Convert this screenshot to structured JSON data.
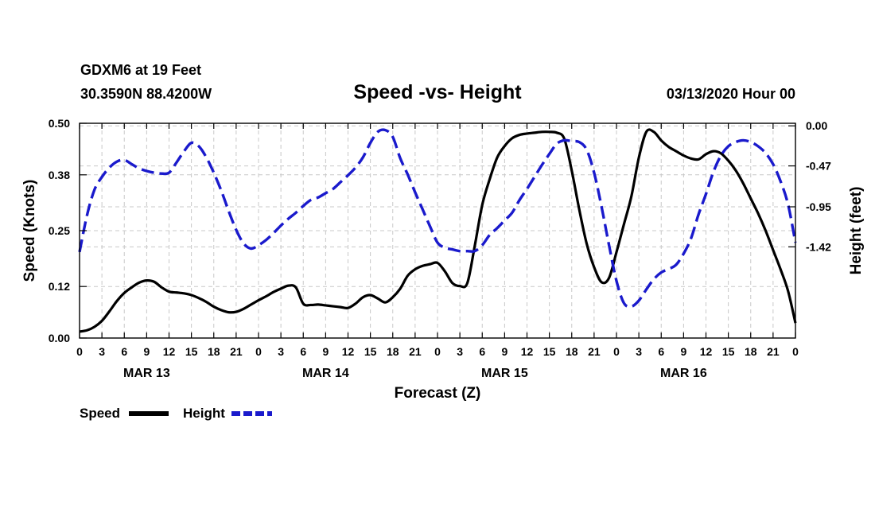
{
  "header": {
    "station": "GDXM6 at 19 Feet",
    "location": "30.3590N 88.4200W",
    "title": "Speed -vs- Height",
    "datetime": "03/13/2020 Hour 00"
  },
  "chart_data": {
    "type": "line",
    "title": "Speed -vs- Height",
    "xlabel": "Forecast (Z)",
    "ylabel": "Speed (Knots)",
    "y2label": "Height (feet)",
    "xlim": [
      0,
      96
    ],
    "ylim": [
      0.0,
      0.5
    ],
    "y2lim": [
      -2.49,
      0.03
    ],
    "grid": true,
    "legend_position": "bottom-left",
    "y_ticks": [
      0.0,
      0.12,
      0.25,
      0.38,
      0.5
    ],
    "y_tick_labels": [
      "0.00",
      "0.12",
      "0.25",
      "0.38",
      "0.50"
    ],
    "y2_ticks": [
      0.0,
      -0.47,
      -0.95,
      -1.42
    ],
    "y2_tick_labels": [
      "0.00",
      "-0.47",
      "-0.95",
      "-1.42"
    ],
    "x_ticks": [
      0,
      3,
      6,
      9,
      12,
      15,
      18,
      21,
      24,
      27,
      30,
      33,
      36,
      39,
      42,
      45,
      48,
      51,
      54,
      57,
      60,
      63,
      66,
      69,
      72,
      75,
      78,
      81,
      84,
      87,
      90,
      93,
      96
    ],
    "x_tick_labels": [
      "0",
      "3",
      "6",
      "9",
      "12",
      "15",
      "18",
      "21",
      "0",
      "3",
      "6",
      "9",
      "12",
      "15",
      "18",
      "21",
      "0",
      "3",
      "6",
      "9",
      "12",
      "15",
      "18",
      "21",
      "0",
      "3",
      "6",
      "9",
      "12",
      "15",
      "18",
      "21",
      "0"
    ],
    "day_labels": [
      {
        "x": 9,
        "label": "MAR 13"
      },
      {
        "x": 33,
        "label": "MAR 14"
      },
      {
        "x": 57,
        "label": "MAR 15"
      },
      {
        "x": 81,
        "label": "MAR 16"
      }
    ],
    "series": [
      {
        "name": "Speed",
        "axis": "left",
        "color": "#000000",
        "style": "solid",
        "x": [
          0,
          1,
          2,
          3,
          4,
          5,
          6,
          7,
          8,
          9,
          10,
          11,
          12,
          13,
          14,
          15,
          16,
          17,
          18,
          19,
          20,
          21,
          22,
          23,
          24,
          25,
          26,
          27,
          28,
          29,
          30,
          31,
          32,
          33,
          34,
          35,
          36,
          37,
          38,
          39,
          40,
          41,
          42,
          43,
          44,
          45,
          46,
          47,
          48,
          49,
          50,
          51,
          52,
          53,
          54,
          55,
          56,
          57,
          58,
          59,
          60,
          61,
          62,
          63,
          64,
          65,
          66,
          67,
          68,
          69,
          70,
          71,
          72,
          73,
          74,
          75,
          76,
          77,
          78,
          79,
          80,
          81,
          82,
          83,
          84,
          85,
          86,
          87,
          88,
          89,
          90,
          91,
          92,
          93,
          94,
          95,
          96
        ],
        "values": [
          0.015,
          0.018,
          0.026,
          0.04,
          0.062,
          0.086,
          0.105,
          0.118,
          0.129,
          0.134,
          0.131,
          0.118,
          0.108,
          0.106,
          0.104,
          0.1,
          0.093,
          0.084,
          0.073,
          0.065,
          0.06,
          0.061,
          0.068,
          0.078,
          0.088,
          0.097,
          0.107,
          0.115,
          0.122,
          0.118,
          0.08,
          0.077,
          0.078,
          0.076,
          0.074,
          0.072,
          0.07,
          0.08,
          0.095,
          0.1,
          0.092,
          0.083,
          0.095,
          0.115,
          0.145,
          0.16,
          0.168,
          0.172,
          0.175,
          0.155,
          0.128,
          0.121,
          0.128,
          0.215,
          0.31,
          0.37,
          0.42,
          0.447,
          0.465,
          0.473,
          0.476,
          0.478,
          0.48,
          0.48,
          0.478,
          0.464,
          0.39,
          0.3,
          0.22,
          0.165,
          0.13,
          0.14,
          0.2,
          0.265,
          0.33,
          0.42,
          0.48,
          0.48,
          0.46,
          0.445,
          0.435,
          0.425,
          0.418,
          0.416,
          0.428,
          0.435,
          0.43,
          0.413,
          0.39,
          0.36,
          0.325,
          0.29,
          0.25,
          0.205,
          0.16,
          0.11,
          0.035
        ]
      },
      {
        "name": "Height",
        "axis": "right",
        "color": "#1a1acc",
        "style": "dashed",
        "x": [
          0,
          1,
          2,
          3,
          4,
          5,
          6,
          7,
          8,
          9,
          10,
          11,
          12,
          13,
          14,
          15,
          16,
          17,
          18,
          19,
          20,
          21,
          22,
          23,
          24,
          25,
          26,
          27,
          28,
          29,
          30,
          31,
          32,
          33,
          34,
          35,
          36,
          37,
          38,
          39,
          40,
          41,
          42,
          43,
          44,
          45,
          46,
          47,
          48,
          49,
          50,
          51,
          52,
          53,
          54,
          55,
          56,
          57,
          58,
          59,
          60,
          61,
          62,
          63,
          64,
          65,
          66,
          67,
          68,
          69,
          70,
          71,
          72,
          73,
          74,
          75,
          76,
          77,
          78,
          79,
          80,
          81,
          82,
          83,
          84,
          85,
          86,
          87,
          88,
          89,
          90,
          91,
          92,
          93,
          94,
          95,
          96
        ],
        "values": [
          -1.48,
          -1.05,
          -0.75,
          -0.6,
          -0.49,
          -0.42,
          -0.4,
          -0.45,
          -0.5,
          -0.53,
          -0.55,
          -0.56,
          -0.55,
          -0.43,
          -0.3,
          -0.2,
          -0.24,
          -0.37,
          -0.55,
          -0.76,
          -1.0,
          -1.22,
          -1.38,
          -1.44,
          -1.4,
          -1.34,
          -1.26,
          -1.17,
          -1.09,
          -1.02,
          -0.94,
          -0.87,
          -0.84,
          -0.79,
          -0.74,
          -0.66,
          -0.58,
          -0.49,
          -0.37,
          -0.2,
          -0.07,
          -0.05,
          -0.13,
          -0.38,
          -0.57,
          -0.78,
          -0.98,
          -1.18,
          -1.37,
          -1.43,
          -1.45,
          -1.47,
          -1.47,
          -1.47,
          -1.4,
          -1.28,
          -1.2,
          -1.11,
          -1.02,
          -0.87,
          -0.74,
          -0.6,
          -0.46,
          -0.33,
          -0.21,
          -0.17,
          -0.18,
          -0.19,
          -0.28,
          -0.55,
          -0.95,
          -1.4,
          -1.82,
          -2.08,
          -2.12,
          -2.05,
          -1.92,
          -1.8,
          -1.72,
          -1.68,
          -1.63,
          -1.5,
          -1.32,
          -1.04,
          -0.8,
          -0.54,
          -0.35,
          -0.24,
          -0.19,
          -0.17,
          -0.19,
          -0.24,
          -0.32,
          -0.45,
          -0.65,
          -0.92,
          -1.37
        ]
      }
    ]
  },
  "legend": {
    "items": [
      {
        "label": "Speed",
        "color": "#000000",
        "style": "solid"
      },
      {
        "label": "Height",
        "color": "#1a1acc",
        "style": "dashed"
      }
    ]
  }
}
